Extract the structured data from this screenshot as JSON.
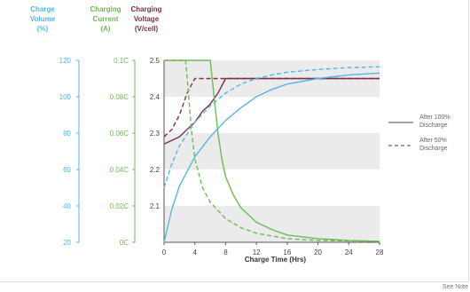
{
  "colors": {
    "volume": "#56b7e3",
    "current": "#6dbb55",
    "voltage": "#7a3048",
    "band": "#ebebeb",
    "axis": "#555555",
    "legend_line": "#6b6b6b"
  },
  "note": "See Note",
  "chart_data": {
    "type": "line",
    "xlabel": "Charge Time (Hrs)",
    "xlim": [
      0,
      28
    ],
    "xticks": [
      "0",
      "4",
      "8",
      "12",
      "16",
      "20",
      "24",
      "28"
    ],
    "axes": [
      {
        "key": "volume",
        "title": [
          "Charge",
          "Volume",
          "(%)"
        ],
        "ticks": [
          "120",
          "100",
          "80",
          "60",
          "40",
          "20"
        ],
        "range": [
          20,
          120
        ]
      },
      {
        "key": "current",
        "title": [
          "Charging",
          "Current",
          "(A)"
        ],
        "ticks": [
          "0.1C",
          "0.08C",
          "0.06C",
          "0.04C",
          "0.02C",
          "0C"
        ],
        "range": [
          0,
          0.1
        ]
      },
      {
        "key": "voltage",
        "title": [
          "Charging",
          "Voltage",
          "(V/cell)"
        ],
        "ticks": [
          "2.5",
          "2.4",
          "2.3",
          "2.2",
          "2.1"
        ],
        "range": [
          2.0,
          2.5
        ]
      }
    ],
    "legend": [
      {
        "label": [
          "After 100%",
          "Discharge"
        ],
        "style": "solid"
      },
      {
        "label": [
          "After 50%",
          "Discharge"
        ],
        "style": "dashed"
      }
    ],
    "series": [
      {
        "axis": "voltage",
        "style": "solid",
        "x": [
          0,
          1,
          2,
          3,
          4,
          5,
          6,
          7,
          7.5,
          8,
          9,
          12,
          28
        ],
        "y": [
          2.27,
          2.28,
          2.29,
          2.31,
          2.33,
          2.36,
          2.38,
          2.41,
          2.43,
          2.45,
          2.45,
          2.45,
          2.45
        ]
      },
      {
        "axis": "voltage",
        "style": "dashed",
        "x": [
          0,
          1,
          2,
          3,
          4,
          28
        ],
        "y": [
          2.29,
          2.31,
          2.35,
          2.41,
          2.45,
          2.45
        ]
      },
      {
        "axis": "current",
        "style": "solid",
        "x": [
          0,
          6,
          6.5,
          7,
          7.5,
          8,
          9,
          10,
          12,
          14,
          16,
          20,
          24,
          28
        ],
        "y": [
          0.1,
          0.1,
          0.08,
          0.06,
          0.046,
          0.036,
          0.026,
          0.019,
          0.011,
          0.007,
          0.004,
          0.002,
          0.001,
          0.0005
        ]
      },
      {
        "axis": "current",
        "style": "dashed",
        "x": [
          0,
          2.8,
          3.2,
          3.6,
          4,
          5,
          6,
          8,
          10,
          12,
          16,
          20,
          28
        ],
        "y": [
          0.1,
          0.1,
          0.08,
          0.06,
          0.046,
          0.03,
          0.022,
          0.013,
          0.008,
          0.005,
          0.002,
          0.001,
          0.0005
        ]
      },
      {
        "axis": "volume",
        "style": "solid",
        "x": [
          0,
          1,
          2,
          4,
          6,
          8,
          10,
          12,
          14,
          16,
          20,
          24,
          28
        ],
        "y": [
          20,
          38,
          51,
          67,
          78,
          87,
          94,
          100,
          104,
          107,
          110,
          112,
          113
        ]
      },
      {
        "axis": "volume",
        "style": "dashed",
        "x": [
          0,
          1,
          2,
          4,
          6,
          8,
          10,
          12,
          14,
          16,
          20,
          24,
          28
        ],
        "y": [
          50,
          63,
          73,
          86,
          95,
          102,
          107,
          110,
          112,
          113.5,
          115,
          116,
          116.5
        ]
      }
    ]
  }
}
